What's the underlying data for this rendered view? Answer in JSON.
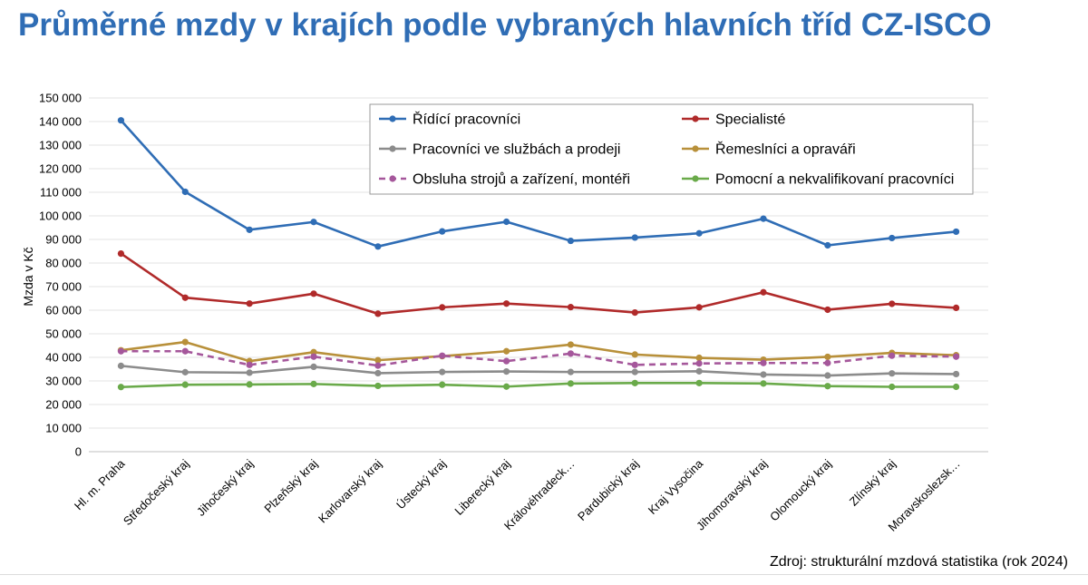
{
  "title": "Průměrné mzdy v krajích podle vybraných hlavních tříd CZ-ISCO",
  "source": "Zdroj: strukturální mzdová statistika (rok 2024)",
  "chart_data": {
    "type": "line",
    "ylabel": "Mzda v Kč",
    "xlabel": "",
    "ylim": [
      0,
      150000
    ],
    "y_ticks": [
      "0",
      "10 000",
      "20 000",
      "30 000",
      "40 000",
      "50 000",
      "60 000",
      "70 000",
      "80 000",
      "90 000",
      "100 000",
      "110 000",
      "120 000",
      "130 000",
      "140 000",
      "150 000"
    ],
    "grid": true,
    "legend_position": "top-right",
    "categories": [
      "Hl. m. Praha",
      "Středočeský kraj",
      "Jihočeský kraj",
      "Plzeňský kraj",
      "Karlovarský kraj",
      "Ústecký kraj",
      "Liberecký kraj",
      "Královéhradeck…",
      "Pardubický kraj",
      "Kraj Vysočina",
      "Jihomoravský kraj",
      "Olomoucký kraj",
      "Zlínský kraj",
      "Moravskoslezsk…"
    ],
    "series": [
      {
        "name": "Řídící pracovníci",
        "color": "#2f6db5",
        "dashed": false,
        "values": [
          140500,
          110200,
          94100,
          97400,
          87000,
          93400,
          97500,
          89400,
          90800,
          92600,
          98800,
          87500,
          90600,
          93300
        ]
      },
      {
        "name": "Specialisté",
        "color": "#b02a2a",
        "dashed": false,
        "values": [
          84000,
          65300,
          62800,
          67000,
          58500,
          61200,
          62800,
          61300,
          59000,
          61200,
          67600,
          60200,
          62700,
          61000
        ]
      },
      {
        "name": "Pracovníci ve službách a prodeji",
        "color": "#8c8c8c",
        "dashed": false,
        "values": [
          36400,
          33700,
          33500,
          36000,
          33300,
          33800,
          34000,
          33800,
          33800,
          34100,
          32700,
          32300,
          33200,
          32900
        ]
      },
      {
        "name": "Řemeslníci a opraváři",
        "color": "#b8903a",
        "dashed": false,
        "values": [
          43000,
          46500,
          38400,
          42200,
          38800,
          40500,
          42600,
          45400,
          41200,
          39800,
          39000,
          40200,
          41900,
          40900
        ]
      },
      {
        "name": "Obsluha strojů a zařízení, montéři",
        "color": "#a5579b",
        "dashed": true,
        "values": [
          42600,
          42600,
          36800,
          40300,
          36500,
          40700,
          38400,
          41600,
          36800,
          37400,
          37600,
          37600,
          40700,
          40300
        ]
      },
      {
        "name": "Pomocní a nekvalifikovaní pracovníci",
        "color": "#6aaa4a",
        "dashed": false,
        "values": [
          27400,
          28400,
          28500,
          28700,
          27900,
          28400,
          27600,
          28900,
          29100,
          29100,
          28900,
          27800,
          27500,
          27500
        ]
      }
    ]
  }
}
